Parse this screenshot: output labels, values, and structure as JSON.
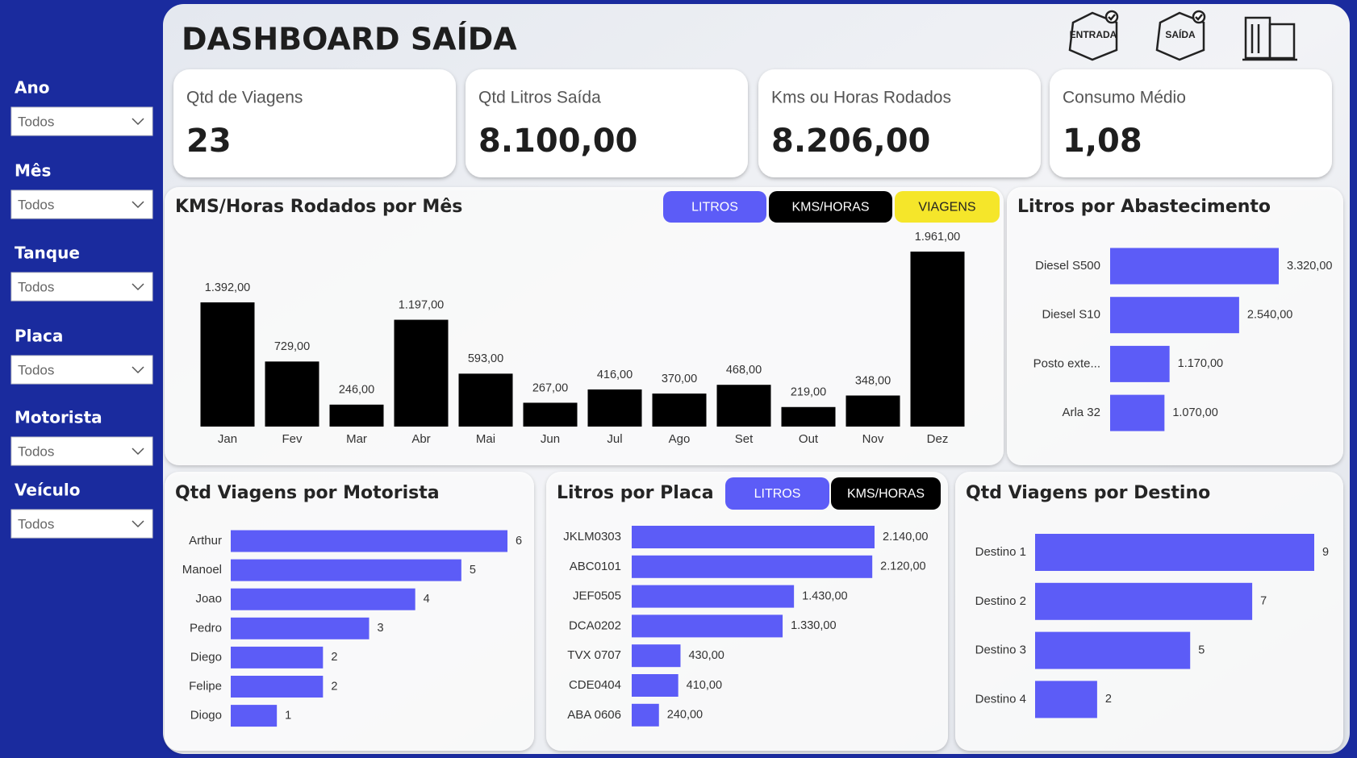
{
  "title": "DASHBOARD SAÍDA",
  "icons": [
    "ENTRADA",
    "SAÍDA"
  ],
  "filters": [
    {
      "label": "Ano",
      "value": "Todos"
    },
    {
      "label": "Mês",
      "value": "Todos"
    },
    {
      "label": "Tanque",
      "value": "Todos"
    },
    {
      "label": "Placa",
      "value": "Todos"
    },
    {
      "label": "Motorista",
      "value": "Todos"
    },
    {
      "label": "Veículo",
      "value": "Todos"
    }
  ],
  "kpis": [
    {
      "label": "Qtd de Viagens",
      "value": "23"
    },
    {
      "label": "Qtd Litros Saída",
      "value": "8.100,00"
    },
    {
      "label": "Kms ou Horas Rodados",
      "value": "8.206,00"
    },
    {
      "label": "Consumo Médio",
      "value": "1,08"
    }
  ],
  "toggles": {
    "month": [
      "LITROS",
      "KMS/HORAS",
      "VIAGENS"
    ],
    "placa": [
      "LITROS",
      "KMS/HORAS"
    ]
  },
  "chart_data": [
    {
      "type": "bar",
      "title": "KMS/Horas Rodados por Mês",
      "categories": [
        "Jan",
        "Fev",
        "Mar",
        "Abr",
        "Mai",
        "Jun",
        "Jul",
        "Ago",
        "Set",
        "Out",
        "Nov",
        "Dez"
      ],
      "values": [
        1392,
        729,
        246,
        1197,
        593,
        267,
        416,
        370,
        468,
        219,
        348,
        1961
      ],
      "value_labels": [
        "1.392,00",
        "729,00",
        "246,00",
        "1.197,00",
        "593,00",
        "267,00",
        "416,00",
        "370,00",
        "468,00",
        "219,00",
        "348,00",
        "1.961,00"
      ],
      "color": "#000000"
    },
    {
      "type": "barh",
      "title": "Litros por Abastecimento",
      "categories": [
        "Diesel S500",
        "Diesel S10",
        "Posto exte...",
        "Arla 32"
      ],
      "values": [
        3320,
        2540,
        1170,
        1070
      ],
      "value_labels": [
        "3.320,00",
        "2.540,00",
        "1.170,00",
        "1.070,00"
      ],
      "color": "#5c5cf7"
    },
    {
      "type": "barh",
      "title": "Qtd Viagens por Motorista",
      "categories": [
        "Arthur",
        "Manoel",
        "Joao",
        "Pedro",
        "Diego",
        "Felipe",
        "Diogo"
      ],
      "values": [
        6,
        5,
        4,
        3,
        2,
        2,
        1
      ],
      "color": "#5c5cf7"
    },
    {
      "type": "barh",
      "title": "Litros por Placa",
      "categories": [
        "JKLM0303",
        "ABC0101",
        "JEF0505",
        "DCA0202",
        "TVX 0707",
        "CDE0404",
        "ABA 0606"
      ],
      "values": [
        2140,
        2120,
        1430,
        1330,
        430,
        410,
        240
      ],
      "value_labels": [
        "2.140,00",
        "2.120,00",
        "1.430,00",
        "1.330,00",
        "430,00",
        "410,00",
        "240,00"
      ],
      "color": "#5c5cf7"
    },
    {
      "type": "barh",
      "title": "Qtd Viagens por Destino",
      "categories": [
        "Destino 1",
        "Destino 2",
        "Destino 3",
        "Destino 4"
      ],
      "values": [
        9,
        7,
        5,
        2
      ],
      "color": "#5c5cf7"
    }
  ]
}
